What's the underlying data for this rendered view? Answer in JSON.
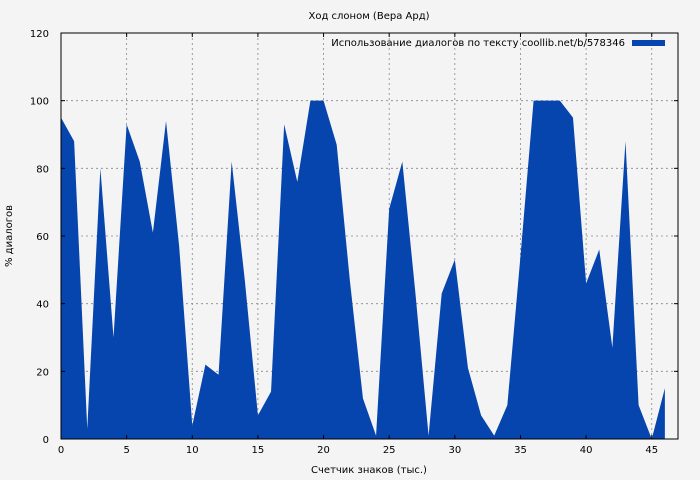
{
  "chart_data": {
    "type": "area",
    "title": "Ход слоном (Вера Ард)",
    "xlabel": "Счетчик знаков (тыс.)",
    "ylabel": "% диалогов",
    "xlim": [
      0,
      47
    ],
    "ylim": [
      0,
      120
    ],
    "x_ticks": [
      0,
      5,
      10,
      15,
      20,
      25,
      30,
      35,
      40,
      45
    ],
    "y_ticks": [
      0,
      20,
      40,
      60,
      80,
      100,
      120
    ],
    "grid": true,
    "legend_position": "top-right",
    "series": [
      {
        "name": "Использование диалогов по тексту coollib.net/b/578346",
        "color": "#0645ad",
        "x": [
          0,
          1,
          2,
          3,
          4,
          5,
          6,
          7,
          8,
          9,
          10,
          11,
          12,
          13,
          14,
          15,
          16,
          17,
          18,
          19,
          20,
          21,
          22,
          23,
          24,
          25,
          26,
          27,
          28,
          29,
          30,
          31,
          32,
          33,
          34,
          35,
          36,
          37,
          38,
          39,
          40,
          41,
          42,
          43,
          44,
          45,
          46
        ],
        "values": [
          95,
          88,
          3,
          80,
          30,
          93,
          82,
          61,
          94,
          57,
          4,
          22,
          19,
          82,
          47,
          7,
          14,
          93,
          76,
          100,
          100,
          87,
          47,
          12,
          1,
          68,
          82,
          43,
          1,
          43,
          53,
          21,
          7,
          1,
          10,
          54,
          100,
          100,
          100,
          95,
          46,
          56,
          27,
          88,
          10,
          0,
          15
        ]
      }
    ]
  }
}
